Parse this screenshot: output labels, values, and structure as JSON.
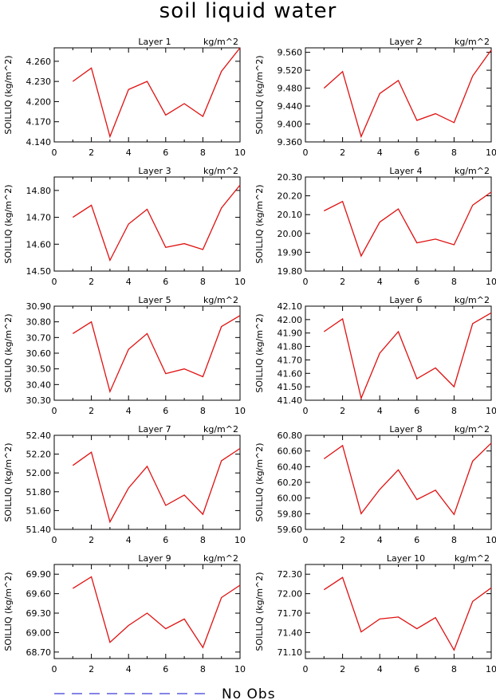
{
  "title": "soil liquid water",
  "legend": {
    "label": "No Obs",
    "line_color": "#3a3ad8",
    "line_style": "dashed"
  },
  "series_color": "#e01010",
  "chart_data": [
    {
      "type": "line",
      "title": "Layer 1",
      "units": "kg/m^2",
      "ylabel": "SOILLIQ  (kg/m^2)",
      "x": [
        1,
        2,
        3,
        4,
        5,
        6,
        7,
        8,
        9,
        10
      ],
      "xlim": [
        0,
        10
      ],
      "xticks": [
        "0",
        "2",
        "4",
        "6",
        "8",
        "10"
      ],
      "ylim": [
        4.14,
        4.28
      ],
      "yticks": [
        "4.140",
        "4.170",
        "4.200",
        "4.230",
        "4.260"
      ],
      "values": [
        4.23,
        4.25,
        4.148,
        4.218,
        4.23,
        4.18,
        4.197,
        4.178,
        4.245,
        4.28
      ]
    },
    {
      "type": "line",
      "title": "Layer 2",
      "units": "kg/m^2",
      "ylabel": "SOILLIQ  (kg/m^2)",
      "x": [
        1,
        2,
        3,
        4,
        5,
        6,
        7,
        8,
        9,
        10
      ],
      "xlim": [
        0,
        10
      ],
      "xticks": [
        "0",
        "2",
        "4",
        "6",
        "8",
        "10"
      ],
      "ylim": [
        9.36,
        9.57
      ],
      "yticks": [
        "9.360",
        "9.400",
        "9.440",
        "9.480",
        "9.520",
        "9.560"
      ],
      "values": [
        9.48,
        9.517,
        9.372,
        9.468,
        9.497,
        9.408,
        9.423,
        9.403,
        9.507,
        9.565
      ]
    },
    {
      "type": "line",
      "title": "Layer 3",
      "units": "kg/m^2",
      "ylabel": "SOILLIQ  (kg/m^2)",
      "x": [
        1,
        2,
        3,
        4,
        5,
        6,
        7,
        8,
        9,
        10
      ],
      "xlim": [
        0,
        10
      ],
      "xticks": [
        "0",
        "2",
        "4",
        "6",
        "8",
        "10"
      ],
      "ylim": [
        14.5,
        14.85
      ],
      "yticks": [
        "14.50",
        "14.60",
        "14.70",
        "14.80"
      ],
      "values": [
        14.7,
        14.745,
        14.54,
        14.675,
        14.73,
        14.588,
        14.602,
        14.58,
        14.735,
        14.82
      ]
    },
    {
      "type": "line",
      "title": "Layer 4",
      "units": "kg/m^2",
      "ylabel": "SOILLIQ  (kg/m^2)",
      "x": [
        1,
        2,
        3,
        4,
        5,
        6,
        7,
        8,
        9,
        10
      ],
      "xlim": [
        0,
        10
      ],
      "xticks": [
        "0",
        "2",
        "4",
        "6",
        "8",
        "10"
      ],
      "ylim": [
        19.8,
        20.3
      ],
      "yticks": [
        "19.80",
        "19.90",
        "20.00",
        "20.10",
        "20.20",
        "20.30"
      ],
      "values": [
        20.12,
        20.17,
        19.88,
        20.06,
        20.13,
        19.95,
        19.97,
        19.94,
        20.15,
        20.22
      ]
    },
    {
      "type": "line",
      "title": "Layer 5",
      "units": "kg/m^2",
      "ylabel": "SOILLIQ  (kg/m^2)",
      "x": [
        1,
        2,
        3,
        4,
        5,
        6,
        7,
        8,
        9,
        10
      ],
      "xlim": [
        0,
        10
      ],
      "xticks": [
        "0",
        "2",
        "4",
        "6",
        "8",
        "10"
      ],
      "ylim": [
        30.3,
        30.9
      ],
      "yticks": [
        "30.30",
        "30.40",
        "30.50",
        "30.60",
        "30.70",
        "30.80",
        "30.90"
      ],
      "values": [
        30.725,
        30.8,
        30.355,
        30.625,
        30.725,
        30.47,
        30.5,
        30.45,
        30.77,
        30.84
      ]
    },
    {
      "type": "line",
      "title": "Layer 6",
      "units": "kg/m^2",
      "ylabel": "SOILLIQ  (kg/m^2)",
      "x": [
        1,
        2,
        3,
        4,
        5,
        6,
        7,
        8,
        9,
        10
      ],
      "xlim": [
        0,
        10
      ],
      "xticks": [
        "0",
        "2",
        "4",
        "6",
        "8",
        "10"
      ],
      "ylim": [
        41.4,
        42.1
      ],
      "yticks": [
        "41.40",
        "41.50",
        "41.60",
        "41.70",
        "41.80",
        "41.90",
        "42.00",
        "42.10"
      ],
      "values": [
        41.91,
        42.005,
        41.415,
        41.75,
        41.91,
        41.56,
        41.64,
        41.5,
        41.97,
        42.05
      ]
    },
    {
      "type": "line",
      "title": "Layer 7",
      "units": "kg/m^2",
      "ylabel": "SOILLIQ  (kg/m^2)",
      "x": [
        1,
        2,
        3,
        4,
        5,
        6,
        7,
        8,
        9,
        10
      ],
      "xlim": [
        0,
        10
      ],
      "xticks": [
        "0",
        "2",
        "4",
        "6",
        "8",
        "10"
      ],
      "ylim": [
        51.4,
        52.4
      ],
      "yticks": [
        "51.40",
        "51.60",
        "51.80",
        "52.00",
        "52.20",
        "52.40"
      ],
      "values": [
        52.08,
        52.22,
        51.48,
        51.84,
        52.07,
        51.655,
        51.765,
        51.56,
        52.13,
        52.26
      ]
    },
    {
      "type": "line",
      "title": "Layer 8",
      "units": "kg/m^2",
      "ylabel": "SOILLIQ  (kg/m^2)",
      "x": [
        1,
        2,
        3,
        4,
        5,
        6,
        7,
        8,
        9,
        10
      ],
      "xlim": [
        0,
        10
      ],
      "xticks": [
        "0",
        "2",
        "4",
        "6",
        "8",
        "10"
      ],
      "ylim": [
        59.6,
        60.8
      ],
      "yticks": [
        "59.60",
        "59.80",
        "60.00",
        "60.20",
        "60.40",
        "60.60",
        "60.80"
      ],
      "values": [
        60.5,
        60.67,
        59.8,
        60.11,
        60.36,
        59.98,
        60.1,
        59.79,
        60.47,
        60.7
      ]
    },
    {
      "type": "line",
      "title": "Layer 9",
      "units": "kg/m^2",
      "ylabel": "SOILLIQ  (kg/m^2)",
      "x": [
        1,
        2,
        3,
        4,
        5,
        6,
        7,
        8,
        9,
        10
      ],
      "xlim": [
        0,
        10
      ],
      "xticks": [
        "0",
        "2",
        "4",
        "6",
        "8",
        "10"
      ],
      "ylim": [
        68.6,
        70.05
      ],
      "yticks": [
        "68.70",
        "69.00",
        "69.30",
        "69.60",
        "69.90"
      ],
      "values": [
        69.68,
        69.86,
        68.85,
        69.11,
        69.3,
        69.06,
        69.21,
        68.77,
        69.54,
        69.73
      ]
    },
    {
      "type": "line",
      "title": "Layer 10",
      "units": "kg/m^2",
      "ylabel": "SOILLIQ  (kg/m^2)",
      "x": [
        1,
        2,
        3,
        4,
        5,
        6,
        7,
        8,
        9,
        10
      ],
      "xlim": [
        0,
        10
      ],
      "xticks": [
        "0",
        "2",
        "4",
        "6",
        "8",
        "10"
      ],
      "ylim": [
        71.0,
        72.45
      ],
      "yticks": [
        "71.10",
        "71.40",
        "71.70",
        "72.00",
        "72.30"
      ],
      "values": [
        72.06,
        72.25,
        71.41,
        71.61,
        71.64,
        71.46,
        71.63,
        71.13,
        71.88,
        72.09
      ]
    }
  ]
}
